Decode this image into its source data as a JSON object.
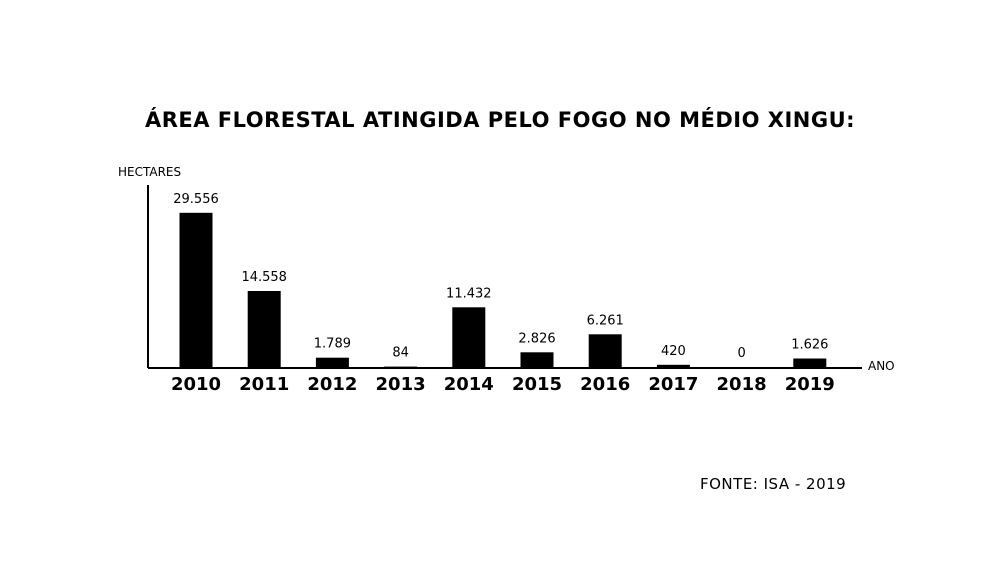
{
  "chart_data": {
    "type": "bar",
    "title": "ÁREA FLORESTAL ATINGIDA PELO FOGO NO MÉDIO XINGU:",
    "ylabel": "HECTARES",
    "xlabel": "ANO",
    "categories": [
      "2010",
      "2011",
      "2012",
      "2013",
      "2014",
      "2015",
      "2016",
      "2017",
      "2018",
      "2019"
    ],
    "values": [
      29556,
      14558,
      1789,
      84,
      11432,
      2826,
      6261,
      420,
      0,
      1626
    ],
    "value_labels": [
      "29.556",
      "14.558",
      "1.789",
      "84",
      "11.432",
      "2.826",
      "6.261",
      "420",
      "0",
      "1.626"
    ],
    "ylim": [
      0,
      32000
    ],
    "grid": false,
    "legend": "none",
    "bar_color": "#000000"
  },
  "source": "FONTE: ISA - 2019"
}
